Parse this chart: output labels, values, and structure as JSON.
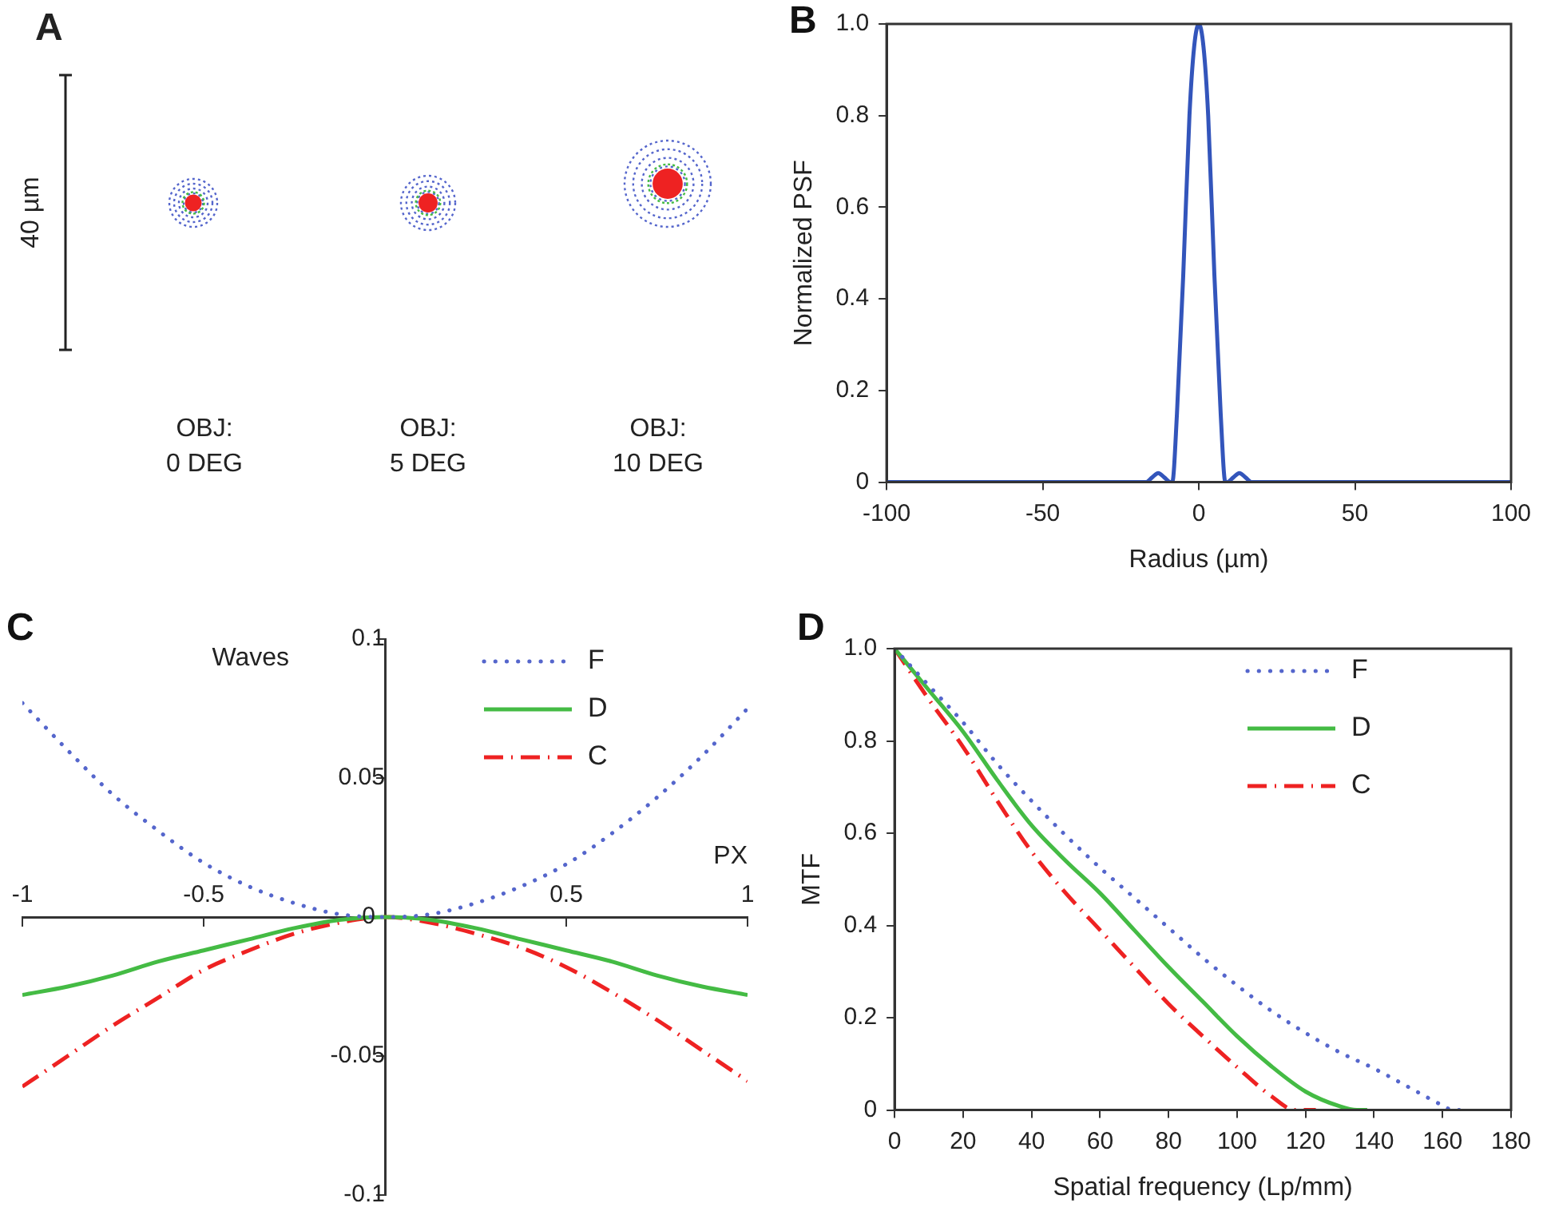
{
  "chart_data": [
    {
      "type": "other",
      "title": "A",
      "annotations": [
        "40 µm",
        "OBJ:\n0 DEG",
        "OBJ:\n5 DEG",
        "OBJ:\n10 DEG"
      ]
    },
    {
      "type": "line",
      "title": "B",
      "xlabel": "Radius (µm)",
      "ylabel": "Normalized PSF",
      "xlim": [
        -100,
        100
      ],
      "xticks": [
        -100,
        -50,
        0,
        50,
        100
      ],
      "ylim": [
        0,
        1
      ],
      "yticks": [
        0,
        0.2,
        0.4,
        0.6,
        0.8,
        {
          "value": 1,
          "label": "1.0"
        }
      ],
      "grid": false,
      "legend": false,
      "x": [
        -100,
        -17,
        -15,
        -13,
        -11,
        -9,
        -8.5,
        -7,
        -5,
        -3,
        -1.5,
        0,
        1.5,
        3,
        5,
        7,
        8.5,
        9,
        11,
        13,
        15,
        17,
        100
      ],
      "series": [
        {
          "color": "#3355bb",
          "values": [
            0,
            0,
            0.01,
            0.02,
            0.01,
            0,
            0,
            0.15,
            0.45,
            0.8,
            0.95,
            1,
            0.95,
            0.8,
            0.45,
            0.15,
            0,
            0,
            0.01,
            0.02,
            0.01,
            0,
            0
          ]
        }
      ]
    },
    {
      "type": "line",
      "title": "C",
      "xlabel": "PX",
      "ylabel": "Waves",
      "xlim": [
        -1,
        1
      ],
      "xticks": [
        -1,
        -0.5,
        {
          "value": 0,
          "label": null
        },
        0.5,
        1
      ],
      "ylim": [
        -0.1,
        0.1
      ],
      "yticks": [
        -0.1,
        -0.05,
        0,
        0.05,
        0.1
      ],
      "grid": false,
      "legend": "top right",
      "x": [
        -1,
        -0.875,
        -0.75,
        -0.625,
        -0.5,
        -0.375,
        -0.25,
        -0.125,
        0,
        0.125,
        0.25,
        0.375,
        0.5,
        0.625,
        0.75,
        0.875,
        1
      ],
      "series": [
        {
          "name": "F",
          "color": "#5566cc",
          "line_style": "dotted",
          "values": [
            0.077,
            0.06,
            0.044,
            0.031,
            0.0195,
            0.011,
            0.005,
            0.001,
            0,
            0.001,
            0.005,
            0.011,
            0.019,
            0.03,
            0.043,
            0.058,
            0.075
          ]
        },
        {
          "name": "D",
          "color": "#44bb44",
          "line_style": "solid",
          "values": [
            -0.028,
            -0.025,
            -0.021,
            -0.016,
            -0.012,
            -0.008,
            -0.004,
            -0.001,
            0,
            -0.001,
            -0.004,
            -0.008,
            -0.012,
            -0.016,
            -0.021,
            -0.025,
            -0.028
          ]
        },
        {
          "name": "C",
          "color": "#ee2222",
          "line_style": "dashed",
          "values": [
            -0.061,
            -0.05,
            -0.039,
            -0.029,
            -0.019,
            -0.012,
            -0.006,
            -0.002,
            0,
            -0.002,
            -0.006,
            -0.011,
            -0.018,
            -0.027,
            -0.037,
            -0.048,
            -0.059
          ]
        }
      ]
    },
    {
      "type": "line",
      "title": "D",
      "xlabel": "Spatial frequency (Lp/mm)",
      "ylabel": "MTF",
      "xlim": [
        0,
        180
      ],
      "xticks": [
        0,
        20,
        40,
        60,
        80,
        100,
        120,
        140,
        160,
        180
      ],
      "ylim": [
        0,
        1
      ],
      "yticks": [
        0,
        0.2,
        0.4,
        0.6,
        0.8,
        {
          "value": 1,
          "label": "1.0"
        }
      ],
      "grid": false,
      "legend": "top right",
      "series": [
        {
          "name": "F",
          "color": "#5566cc",
          "line_style": "dotted",
          "x": [
            0,
            10,
            20,
            30,
            40,
            50,
            60,
            70,
            80,
            90,
            100,
            110,
            120,
            130,
            140,
            150,
            160,
            163,
            168
          ],
          "values": [
            1,
            0.92,
            0.84,
            0.75,
            0.67,
            0.595,
            0.525,
            0.46,
            0.395,
            0.33,
            0.27,
            0.215,
            0.167,
            0.125,
            0.09,
            0.05,
            0.01,
            0,
            0
          ]
        },
        {
          "name": "D",
          "color": "#44bb44",
          "line_style": "solid",
          "x": [
            0,
            10,
            20,
            30,
            40,
            50,
            60,
            70,
            80,
            90,
            100,
            110,
            120,
            130,
            135,
            138
          ],
          "values": [
            1,
            0.91,
            0.82,
            0.715,
            0.617,
            0.54,
            0.47,
            0.39,
            0.31,
            0.235,
            0.16,
            0.095,
            0.04,
            0.008,
            0,
            0
          ]
        },
        {
          "name": "C",
          "color": "#ee2222",
          "line_style": "dashed",
          "x": [
            0,
            10,
            20,
            30,
            40,
            50,
            60,
            70,
            80,
            90,
            100,
            110,
            117,
            123
          ],
          "values": [
            1,
            0.89,
            0.787,
            0.67,
            0.56,
            0.47,
            0.39,
            0.31,
            0.23,
            0.16,
            0.093,
            0.03,
            0,
            0
          ]
        }
      ]
    }
  ]
}
